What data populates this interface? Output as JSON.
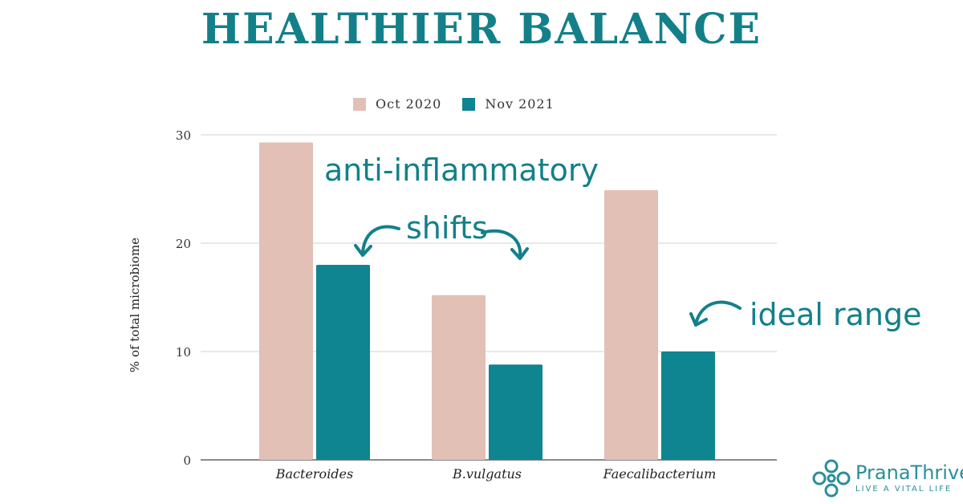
{
  "colors": {
    "oct": "#e2c0b6",
    "nov": "#0e8590",
    "accent": "#138089",
    "grid": "#d0d0d0"
  },
  "chart_data": {
    "type": "bar",
    "title": "HEALTHIER BALANCE",
    "ylabel": "% of total microbiome",
    "xlabel": "",
    "ylim": [
      0,
      30
    ],
    "yticks": [
      0,
      10,
      20,
      30
    ],
    "grid": true,
    "legend_position": "top",
    "categories": [
      "Bacteroides",
      "B.vulgatus",
      "Faecalibacterium"
    ],
    "series": [
      {
        "name": "Oct 2020",
        "values": [
          29.3,
          15.2,
          24.9
        ]
      },
      {
        "name": "Nov 2021",
        "values": [
          18.0,
          8.8,
          10.0
        ]
      }
    ],
    "annotations": [
      "anti-inflammatory",
      "shifts",
      "ideal range"
    ]
  },
  "logo": {
    "brand": "PranaThrive",
    "tagline": "LIVE A VITAL LIFE"
  }
}
